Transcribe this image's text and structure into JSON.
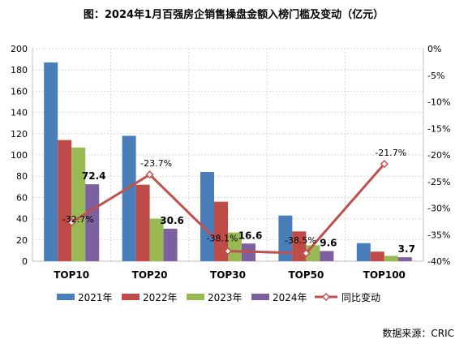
{
  "chart_data": {
    "type": "bar",
    "title": "图：2024年1月百强房企销售操盘金额入榜门槛及变动（亿元）",
    "source": "数据来源：CRIC",
    "categories": [
      "TOP10",
      "TOP20",
      "TOP30",
      "TOP50",
      "TOP100"
    ],
    "series": [
      {
        "name": "2021年",
        "color": "#4a7ebb",
        "values": [
          187,
          118,
          84,
          43,
          17
        ]
      },
      {
        "name": "2022年",
        "color": "#be4b48",
        "values": [
          114,
          72,
          56,
          28,
          9
        ]
      },
      {
        "name": "2023年",
        "color": "#98b954",
        "values": [
          107,
          40,
          27,
          15,
          5
        ]
      },
      {
        "name": "2024年",
        "color": "#7d60a0",
        "values": [
          72.4,
          30.6,
          16.6,
          9.6,
          3.7
        ]
      }
    ],
    "value_labels": [
      "72.4",
      "30.6",
      "16.6",
      "9.6",
      "3.7"
    ],
    "line_series": {
      "name": "同比变动",
      "color": "#c0504d",
      "values": [
        -32.7,
        -23.7,
        -38.1,
        -38.5,
        -21.7
      ],
      "labels": [
        "-32.7%",
        "-23.7%",
        "-38.1%",
        "-38.5%",
        "-21.7%"
      ]
    },
    "y_left": {
      "min": 0,
      "max": 200,
      "step": 20,
      "ticks": [
        "0",
        "20",
        "40",
        "60",
        "80",
        "100",
        "120",
        "140",
        "160",
        "180",
        "200"
      ]
    },
    "y_right": {
      "min": -40,
      "max": 0,
      "step": 5,
      "ticks": [
        "-40%",
        "-35%",
        "-30%",
        "-25%",
        "-20%",
        "-15%",
        "-10%",
        "-5%",
        "0%"
      ]
    },
    "grid": true,
    "legend_position": "bottom"
  }
}
